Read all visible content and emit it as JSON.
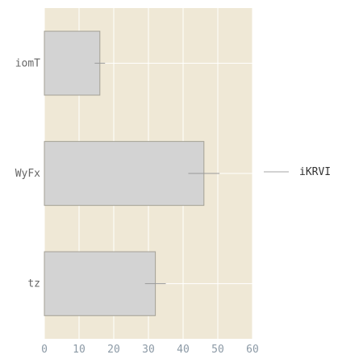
{
  "chart_data": {
    "type": "bar",
    "orientation": "horizontal",
    "categories": [
      "iomT",
      "WyFx",
      "tz"
    ],
    "series": [
      {
        "name": "iKRVI",
        "values": [
          16,
          46,
          32
        ],
        "errors": [
          1.5,
          4.5,
          3
        ]
      }
    ],
    "xlim": [
      0,
      60
    ],
    "x_ticks": [
      0,
      10,
      20,
      30,
      40,
      50,
      60
    ],
    "grid": true,
    "legend": "right",
    "colors": {
      "panel_background": "#efe8d6",
      "grid": "#ffffff",
      "bar_fill": "#d3d3d3",
      "bar_stroke": "#a4a195",
      "error_bar": "#9a9a9a",
      "tick_text": "#8c9aa6",
      "category_text": "#666666",
      "legend_line": "#c3c3c3",
      "legend_text": "#333333"
    }
  }
}
